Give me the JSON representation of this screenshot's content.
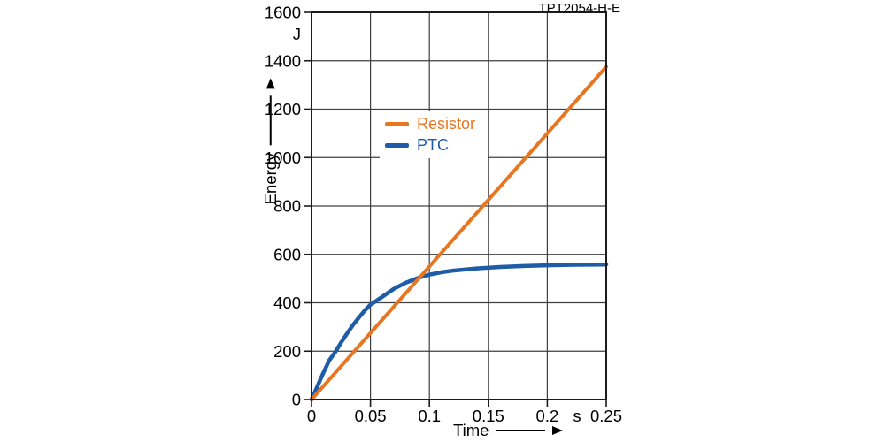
{
  "doc_code": "TPT2054-H-E",
  "colors": {
    "resistor": "#E87620",
    "ptc": "#1E5CA8",
    "grid": "#3F3F3F",
    "axis": "#1C1C1C",
    "text": "#000000",
    "background": "#FFFFFF"
  },
  "axes": {
    "y": {
      "label": "Energy",
      "unit": "J"
    },
    "x": {
      "label": "Time",
      "unit": "s"
    }
  },
  "chart_data": {
    "type": "line",
    "title": "TPT2054-H-E",
    "xlabel": "Time",
    "x_unit": "s",
    "ylabel": "Energy",
    "y_unit": "J",
    "xlim": [
      0,
      0.25
    ],
    "ylim": [
      0,
      1600
    ],
    "x_ticks": [
      0,
      0.05,
      0.1,
      0.15,
      0.2,
      0.25
    ],
    "x_tick_labels": [
      "0",
      "0.05",
      "0.1",
      "0.15",
      "0.2",
      "0.25"
    ],
    "y_ticks": [
      0,
      200,
      400,
      600,
      800,
      1000,
      1200,
      1400,
      1600
    ],
    "y_tick_labels": [
      "0",
      "200",
      "400",
      "600",
      "800",
      "1000",
      "1200",
      "1400",
      "1600"
    ],
    "grid": true,
    "legend_position": "upper-left-inside",
    "series": [
      {
        "name": "Resistor",
        "color": "#E87620",
        "x": [
          0,
          0.25
        ],
        "y": [
          0,
          1375
        ]
      },
      {
        "name": "PTC",
        "color": "#1E5CA8",
        "x": [
          0,
          0.005,
          0.01,
          0.015,
          0.02,
          0.025,
          0.03,
          0.035,
          0.04,
          0.045,
          0.05,
          0.06,
          0.07,
          0.08,
          0.09,
          0.1,
          0.11,
          0.12,
          0.14,
          0.16,
          0.18,
          0.2,
          0.225,
          0.25
        ],
        "y": [
          0,
          55,
          110,
          162,
          195,
          235,
          272,
          307,
          338,
          367,
          392,
          425,
          458,
          483,
          502,
          516,
          526,
          533,
          542,
          548,
          552,
          555,
          557,
          558
        ]
      }
    ]
  }
}
